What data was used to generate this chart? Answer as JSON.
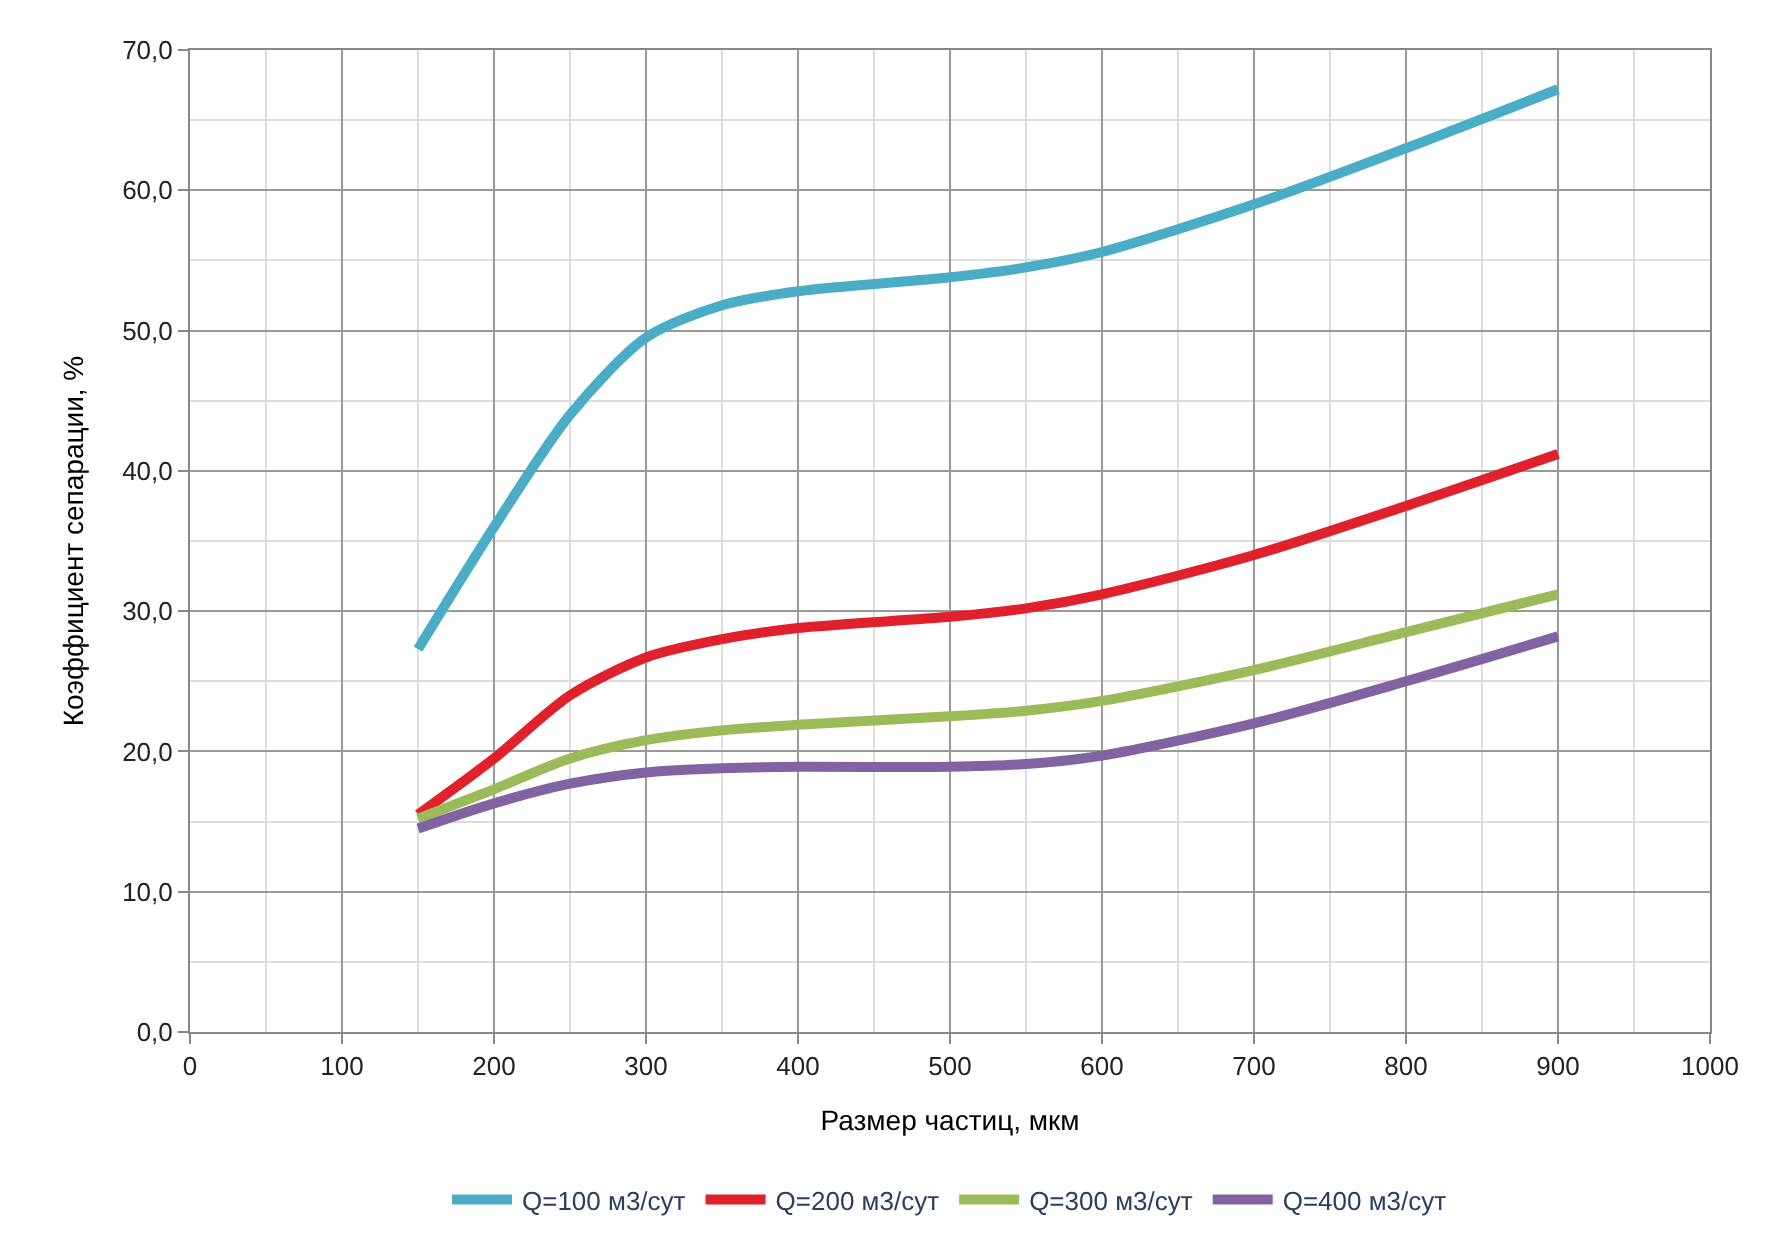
{
  "chart_data": {
    "type": "line",
    "xlabel": "Размер частиц, мкм",
    "ylabel": "Коэффициент сепарации, %",
    "x": [
      150,
      200,
      250,
      300,
      350,
      400,
      500,
      550,
      600,
      700,
      800,
      900
    ],
    "series": [
      {
        "name": "Q=100 м3/сут",
        "color": "#4bacc6",
        "values": [
          27.3,
          36.0,
          44.0,
          49.5,
          51.8,
          52.8,
          53.8,
          54.5,
          55.6,
          59.0,
          63.0,
          67.2
        ]
      },
      {
        "name": "Q=200 м3/сут",
        "color": "#e0202a",
        "values": [
          15.5,
          19.5,
          24.0,
          26.7,
          28.0,
          28.8,
          29.6,
          30.2,
          31.2,
          34.0,
          37.5,
          41.2
        ]
      },
      {
        "name": "Q=300 м3/сут",
        "color": "#9bbb59",
        "values": [
          15.2,
          17.3,
          19.5,
          20.8,
          21.5,
          21.9,
          22.5,
          22.9,
          23.6,
          25.8,
          28.5,
          31.2
        ]
      },
      {
        "name": "Q=400 м3/сут",
        "color": "#8064a2",
        "values": [
          14.5,
          16.3,
          17.7,
          18.5,
          18.8,
          18.9,
          18.9,
          19.1,
          19.7,
          22.0,
          25.0,
          28.2
        ]
      }
    ],
    "xlim": [
      0,
      1000
    ],
    "xticks": [
      0,
      100,
      200,
      300,
      400,
      500,
      600,
      700,
      800,
      900,
      1000
    ],
    "ylim": [
      0,
      70
    ],
    "yticks": [
      {
        "value": 0,
        "label": "0,0"
      },
      {
        "value": 10,
        "label": "10,0"
      },
      {
        "value": 20,
        "label": "20,0"
      },
      {
        "value": 30,
        "label": "30,0"
      },
      {
        "value": 40,
        "label": "40,0"
      },
      {
        "value": 50,
        "label": "50,0"
      },
      {
        "value": 60,
        "label": "60,0"
      },
      {
        "value": 70,
        "label": "70,0"
      }
    ],
    "grid": true,
    "legend": "bottom",
    "marker": "none",
    "line_style": "solid"
  }
}
